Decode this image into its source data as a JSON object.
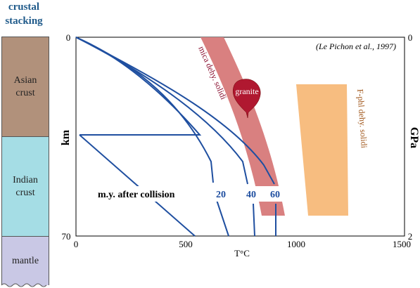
{
  "stacking_column": {
    "title_line1": "crustal",
    "title_line2": "stacking",
    "layers": [
      {
        "line1": "Asian",
        "line2": "crust",
        "color": "#b1917b"
      },
      {
        "line1": "Indian",
        "line2": "crust",
        "color": "#a5dde5"
      },
      {
        "line1": "mantle",
        "line2": "",
        "color": "#c9c8e5"
      }
    ]
  },
  "diagram": {
    "citation": "(Le Pichon et al., 1997)",
    "y_top_label": "0",
    "y_bottom_label": "70",
    "y_axis_label": "km",
    "right_top_label": "0",
    "right_bottom_label": "2",
    "right_axis_label": "GPa",
    "x_tick_labels": [
      "0",
      "500",
      "1000",
      "1500"
    ],
    "x_axis_label": "T°C",
    "band1_label": "mica dehy. solidi",
    "band2_label": "F-phl dehy. solidi",
    "granite_label": "granite",
    "collision_label": "m.y. after collision",
    "curve_labels": [
      "20",
      "40",
      "60"
    ],
    "colors": {
      "mica_band": "#d98080",
      "phl_band": "#f7bd80",
      "curve": "#1f4fa0",
      "granite": "#b01830",
      "title": "#1f5a8a",
      "mica_label": "#8a1030",
      "phl_label": "#a0561a"
    }
  }
}
